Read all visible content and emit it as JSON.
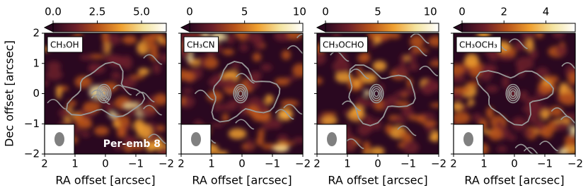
{
  "chart_data": [
    {
      "type": "heatmap",
      "title": "CH₃OH",
      "annotation": "Per-emb 8",
      "xlabel": "RA offset [arcsec]",
      "ylabel": "Dec offset [arcsec]",
      "xlim": [
        2,
        -2
      ],
      "ylim": [
        -2,
        2
      ],
      "xticks": [
        2,
        1,
        0,
        {
          "value": -1,
          "label": "−1"
        },
        {
          "value": -2,
          "label": "−2"
        }
      ],
      "yticks": [
        {
          "value": -2,
          "label": "−2"
        },
        {
          "value": -1,
          "label": "−1"
        },
        0,
        1,
        2
      ],
      "colorbar": {
        "lim": [
          0,
          6.4
        ],
        "ticks": [
          {
            "value": 0,
            "label": "0.0"
          },
          2.5,
          {
            "value": 5,
            "label": "5.0"
          }
        ],
        "colors": [
          "#2a0820",
          "#6b1f2a",
          "#b8541a",
          "#f0a030",
          "#f4e4a0",
          "#ffffff"
        ]
      }
    },
    {
      "type": "heatmap",
      "title": "CH₃CN",
      "xlabel": "RA offset [arcsec]",
      "xlim": [
        2,
        -2
      ],
      "ylim": [
        -2,
        2
      ],
      "xticks": [
        2,
        1,
        0,
        {
          "value": -1,
          "label": "−1"
        },
        {
          "value": -2,
          "label": "−2"
        }
      ],
      "colorbar": {
        "lim": [
          0,
          10.3
        ],
        "ticks": [
          0,
          5,
          10
        ],
        "colors": [
          "#2a0820",
          "#6b1f2a",
          "#b8541a",
          "#f0a030",
          "#f4e4a0",
          "#ffffff"
        ]
      }
    },
    {
      "type": "heatmap",
      "title": "CH₃OCHO",
      "xlabel": "RA offset [arcsec]",
      "xlim": [
        2,
        -2
      ],
      "ylim": [
        -2,
        2
      ],
      "xticks": [
        2,
        1,
        0,
        {
          "value": -1,
          "label": "−1"
        },
        {
          "value": -2,
          "label": "−2"
        }
      ],
      "colorbar": {
        "lim": [
          0,
          10.8
        ],
        "ticks": [
          0,
          5,
          10
        ],
        "colors": [
          "#2a0820",
          "#6b1f2a",
          "#b8541a",
          "#f0a030",
          "#f4e4a0",
          "#ffffff"
        ]
      }
    },
    {
      "type": "heatmap",
      "title": "CH₃OCH₃",
      "xlabel": "RA offset [arcsec]",
      "xlim": [
        2,
        -2
      ],
      "ylim": [
        -2,
        2
      ],
      "xticks": [
        2,
        1,
        0,
        {
          "value": -1,
          "label": "−1"
        },
        {
          "value": -2,
          "label": "−2"
        }
      ],
      "colorbar": {
        "lim": [
          0,
          5.4
        ],
        "ticks": [
          0,
          2,
          4
        ],
        "colors": [
          "#2a0820",
          "#6b1f2a",
          "#b8541a",
          "#f0a030",
          "#f4e4a0",
          "#ffffff"
        ]
      }
    }
  ]
}
